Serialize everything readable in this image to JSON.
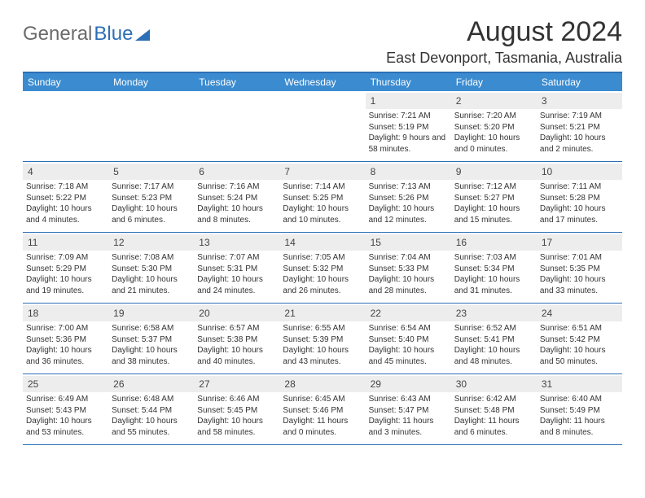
{
  "brand": {
    "part1": "General",
    "part2": "Blue"
  },
  "title": "August 2024",
  "location": "East Devonport, Tasmania, Australia",
  "colors": {
    "header_bg": "#3b8bd0",
    "border": "#2d6fb6",
    "daybg": "#ededed",
    "text": "#333333",
    "page_bg": "#ffffff"
  },
  "day_headers": [
    "Sunday",
    "Monday",
    "Tuesday",
    "Wednesday",
    "Thursday",
    "Friday",
    "Saturday"
  ],
  "weeks": [
    [
      {
        "n": "",
        "sr": "",
        "ss": "",
        "dl": ""
      },
      {
        "n": "",
        "sr": "",
        "ss": "",
        "dl": ""
      },
      {
        "n": "",
        "sr": "",
        "ss": "",
        "dl": ""
      },
      {
        "n": "",
        "sr": "",
        "ss": "",
        "dl": ""
      },
      {
        "n": "1",
        "sr": "Sunrise: 7:21 AM",
        "ss": "Sunset: 5:19 PM",
        "dl": "Daylight: 9 hours and 58 minutes."
      },
      {
        "n": "2",
        "sr": "Sunrise: 7:20 AM",
        "ss": "Sunset: 5:20 PM",
        "dl": "Daylight: 10 hours and 0 minutes."
      },
      {
        "n": "3",
        "sr": "Sunrise: 7:19 AM",
        "ss": "Sunset: 5:21 PM",
        "dl": "Daylight: 10 hours and 2 minutes."
      }
    ],
    [
      {
        "n": "4",
        "sr": "Sunrise: 7:18 AM",
        "ss": "Sunset: 5:22 PM",
        "dl": "Daylight: 10 hours and 4 minutes."
      },
      {
        "n": "5",
        "sr": "Sunrise: 7:17 AM",
        "ss": "Sunset: 5:23 PM",
        "dl": "Daylight: 10 hours and 6 minutes."
      },
      {
        "n": "6",
        "sr": "Sunrise: 7:16 AM",
        "ss": "Sunset: 5:24 PM",
        "dl": "Daylight: 10 hours and 8 minutes."
      },
      {
        "n": "7",
        "sr": "Sunrise: 7:14 AM",
        "ss": "Sunset: 5:25 PM",
        "dl": "Daylight: 10 hours and 10 minutes."
      },
      {
        "n": "8",
        "sr": "Sunrise: 7:13 AM",
        "ss": "Sunset: 5:26 PM",
        "dl": "Daylight: 10 hours and 12 minutes."
      },
      {
        "n": "9",
        "sr": "Sunrise: 7:12 AM",
        "ss": "Sunset: 5:27 PM",
        "dl": "Daylight: 10 hours and 15 minutes."
      },
      {
        "n": "10",
        "sr": "Sunrise: 7:11 AM",
        "ss": "Sunset: 5:28 PM",
        "dl": "Daylight: 10 hours and 17 minutes."
      }
    ],
    [
      {
        "n": "11",
        "sr": "Sunrise: 7:09 AM",
        "ss": "Sunset: 5:29 PM",
        "dl": "Daylight: 10 hours and 19 minutes."
      },
      {
        "n": "12",
        "sr": "Sunrise: 7:08 AM",
        "ss": "Sunset: 5:30 PM",
        "dl": "Daylight: 10 hours and 21 minutes."
      },
      {
        "n": "13",
        "sr": "Sunrise: 7:07 AM",
        "ss": "Sunset: 5:31 PM",
        "dl": "Daylight: 10 hours and 24 minutes."
      },
      {
        "n": "14",
        "sr": "Sunrise: 7:05 AM",
        "ss": "Sunset: 5:32 PM",
        "dl": "Daylight: 10 hours and 26 minutes."
      },
      {
        "n": "15",
        "sr": "Sunrise: 7:04 AM",
        "ss": "Sunset: 5:33 PM",
        "dl": "Daylight: 10 hours and 28 minutes."
      },
      {
        "n": "16",
        "sr": "Sunrise: 7:03 AM",
        "ss": "Sunset: 5:34 PM",
        "dl": "Daylight: 10 hours and 31 minutes."
      },
      {
        "n": "17",
        "sr": "Sunrise: 7:01 AM",
        "ss": "Sunset: 5:35 PM",
        "dl": "Daylight: 10 hours and 33 minutes."
      }
    ],
    [
      {
        "n": "18",
        "sr": "Sunrise: 7:00 AM",
        "ss": "Sunset: 5:36 PM",
        "dl": "Daylight: 10 hours and 36 minutes."
      },
      {
        "n": "19",
        "sr": "Sunrise: 6:58 AM",
        "ss": "Sunset: 5:37 PM",
        "dl": "Daylight: 10 hours and 38 minutes."
      },
      {
        "n": "20",
        "sr": "Sunrise: 6:57 AM",
        "ss": "Sunset: 5:38 PM",
        "dl": "Daylight: 10 hours and 40 minutes."
      },
      {
        "n": "21",
        "sr": "Sunrise: 6:55 AM",
        "ss": "Sunset: 5:39 PM",
        "dl": "Daylight: 10 hours and 43 minutes."
      },
      {
        "n": "22",
        "sr": "Sunrise: 6:54 AM",
        "ss": "Sunset: 5:40 PM",
        "dl": "Daylight: 10 hours and 45 minutes."
      },
      {
        "n": "23",
        "sr": "Sunrise: 6:52 AM",
        "ss": "Sunset: 5:41 PM",
        "dl": "Daylight: 10 hours and 48 minutes."
      },
      {
        "n": "24",
        "sr": "Sunrise: 6:51 AM",
        "ss": "Sunset: 5:42 PM",
        "dl": "Daylight: 10 hours and 50 minutes."
      }
    ],
    [
      {
        "n": "25",
        "sr": "Sunrise: 6:49 AM",
        "ss": "Sunset: 5:43 PM",
        "dl": "Daylight: 10 hours and 53 minutes."
      },
      {
        "n": "26",
        "sr": "Sunrise: 6:48 AM",
        "ss": "Sunset: 5:44 PM",
        "dl": "Daylight: 10 hours and 55 minutes."
      },
      {
        "n": "27",
        "sr": "Sunrise: 6:46 AM",
        "ss": "Sunset: 5:45 PM",
        "dl": "Daylight: 10 hours and 58 minutes."
      },
      {
        "n": "28",
        "sr": "Sunrise: 6:45 AM",
        "ss": "Sunset: 5:46 PM",
        "dl": "Daylight: 11 hours and 0 minutes."
      },
      {
        "n": "29",
        "sr": "Sunrise: 6:43 AM",
        "ss": "Sunset: 5:47 PM",
        "dl": "Daylight: 11 hours and 3 minutes."
      },
      {
        "n": "30",
        "sr": "Sunrise: 6:42 AM",
        "ss": "Sunset: 5:48 PM",
        "dl": "Daylight: 11 hours and 6 minutes."
      },
      {
        "n": "31",
        "sr": "Sunrise: 6:40 AM",
        "ss": "Sunset: 5:49 PM",
        "dl": "Daylight: 11 hours and 8 minutes."
      }
    ]
  ]
}
